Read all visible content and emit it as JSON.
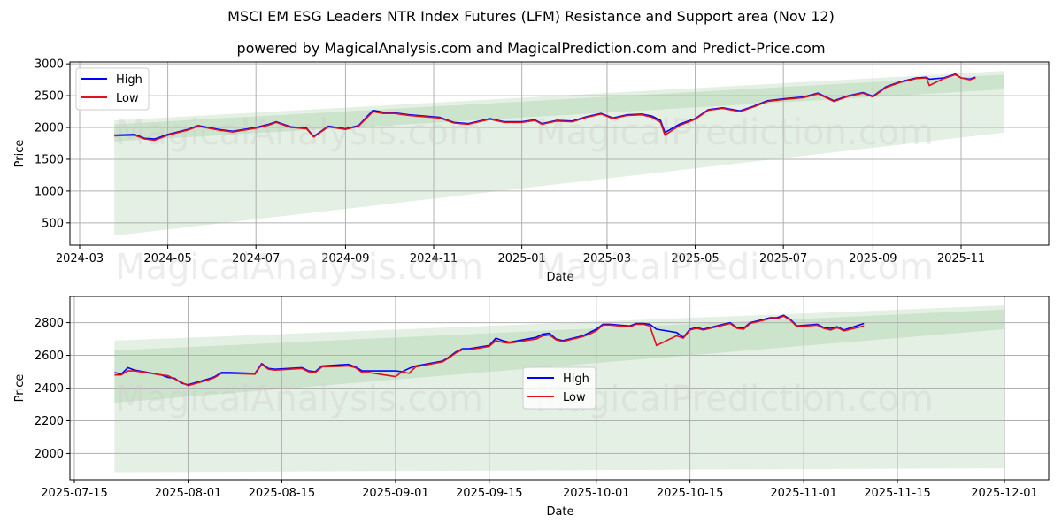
{
  "header": {
    "title": "MSCI EM ESG Leaders NTR Index Futures (LFM) Resistance and Support area (Nov 12)",
    "subtitle": "powered by MagicalAnalysis.com and MagicalPrediction.com and Predict-Price.com"
  },
  "watermarks": [
    "MagicalAnalysis.com",
    "MagicalPrediction.com"
  ],
  "colors": {
    "high": "#0000ff",
    "low": "#e0101e",
    "band": "#2e8b2e",
    "grid": "#b0b0b0"
  },
  "chart_data": [
    {
      "type": "line",
      "title": "",
      "xlabel": "Date",
      "ylabel": "Price",
      "ylim": [
        150,
        3030
      ],
      "yticks": [
        500,
        1000,
        1500,
        2000,
        2500,
        3000
      ],
      "xticks": [
        "2024-03",
        "2024-05",
        "2024-07",
        "2024-09",
        "2024-11",
        "2025-01",
        "2025-03",
        "2025-05",
        "2025-07",
        "2025-09",
        "2025-11"
      ],
      "grid": true,
      "legend": {
        "position": "upper left",
        "entries": [
          "High",
          "Low"
        ]
      },
      "x": [
        "2024-03-25",
        "2024-04-08",
        "2024-04-15",
        "2024-04-22",
        "2024-05-01",
        "2024-05-15",
        "2024-05-22",
        "2024-06-05",
        "2024-06-15",
        "2024-07-01",
        "2024-07-10",
        "2024-07-15",
        "2024-07-25",
        "2024-08-05",
        "2024-08-10",
        "2024-08-20",
        "2024-09-01",
        "2024-09-10",
        "2024-09-20",
        "2024-09-27",
        "2024-10-05",
        "2024-10-15",
        "2024-10-25",
        "2024-11-05",
        "2024-11-15",
        "2024-11-25",
        "2024-12-10",
        "2024-12-20",
        "2025-01-01",
        "2025-01-10",
        "2025-01-15",
        "2025-01-25",
        "2025-02-05",
        "2025-02-15",
        "2025-02-25",
        "2025-03-05",
        "2025-03-15",
        "2025-03-25",
        "2025-04-01",
        "2025-04-07",
        "2025-04-10",
        "2025-04-20",
        "2025-05-01",
        "2025-05-10",
        "2025-05-20",
        "2025-06-01",
        "2025-06-10",
        "2025-06-20",
        "2025-07-01",
        "2025-07-15",
        "2025-07-25",
        "2025-08-05",
        "2025-08-15",
        "2025-08-25",
        "2025-09-01",
        "2025-09-10",
        "2025-09-20",
        "2025-10-01",
        "2025-10-08",
        "2025-10-10",
        "2025-10-20",
        "2025-10-28",
        "2025-11-01",
        "2025-11-07",
        "2025-11-11"
      ],
      "series": [
        {
          "name": "High",
          "values": [
            1880,
            1890,
            1830,
            1820,
            1890,
            1970,
            2030,
            1970,
            1940,
            2000,
            2050,
            2090,
            2010,
            1990,
            1860,
            2020,
            1980,
            2030,
            2270,
            2240,
            2230,
            2200,
            2180,
            2160,
            2080,
            2060,
            2140,
            2090,
            2090,
            2120,
            2060,
            2110,
            2100,
            2170,
            2220,
            2150,
            2200,
            2210,
            2180,
            2110,
            1920,
            2050,
            2140,
            2280,
            2310,
            2260,
            2330,
            2420,
            2450,
            2480,
            2540,
            2420,
            2500,
            2550,
            2490,
            2640,
            2720,
            2780,
            2790,
            2760,
            2780,
            2840,
            2780,
            2760,
            2790
          ]
        },
        {
          "name": "Low",
          "values": [
            1870,
            1880,
            1820,
            1800,
            1880,
            1960,
            2020,
            1960,
            1930,
            1990,
            2040,
            2080,
            2000,
            1980,
            1850,
            2010,
            1970,
            2020,
            2250,
            2220,
            2220,
            2190,
            2170,
            2150,
            2070,
            2050,
            2130,
            2080,
            2080,
            2110,
            2050,
            2100,
            2090,
            2160,
            2210,
            2140,
            2190,
            2200,
            2160,
            2080,
            1880,
            2030,
            2130,
            2270,
            2300,
            2250,
            2320,
            2410,
            2440,
            2470,
            2530,
            2410,
            2490,
            2540,
            2480,
            2630,
            2710,
            2770,
            2780,
            2660,
            2770,
            2830,
            2780,
            2750,
            2780
          ]
        }
      ],
      "bands": [
        {
          "name": "outer",
          "x": [
            "2024-03-25",
            "2025-12-01"
          ],
          "upper": [
            2110,
            2890
          ],
          "lower": [
            300,
            1920
          ]
        },
        {
          "name": "inner",
          "x": [
            "2024-03-25",
            "2025-12-01"
          ],
          "upper": [
            2050,
            2830
          ],
          "lower": [
            1780,
            2600
          ]
        }
      ]
    },
    {
      "type": "line",
      "title": "",
      "xlabel": "Date",
      "ylabel": "Price",
      "ylim": [
        1840,
        2960
      ],
      "yticks": [
        2000,
        2200,
        2400,
        2600,
        2800
      ],
      "xticks": [
        "2025-07-15",
        "2025-08-01",
        "2025-08-15",
        "2025-09-01",
        "2025-09-15",
        "2025-10-01",
        "2025-10-15",
        "2025-11-01",
        "2025-11-15",
        "2025-12-01"
      ],
      "grid": true,
      "legend": {
        "position": "center",
        "entries": [
          "High",
          "Low"
        ]
      },
      "x": [
        "2025-07-21",
        "2025-07-22",
        "2025-07-23",
        "2025-07-24",
        "2025-07-28",
        "2025-07-29",
        "2025-07-30",
        "2025-07-31",
        "2025-08-01",
        "2025-08-04",
        "2025-08-05",
        "2025-08-06",
        "2025-08-07",
        "2025-08-11",
        "2025-08-12",
        "2025-08-13",
        "2025-08-14",
        "2025-08-18",
        "2025-08-19",
        "2025-08-20",
        "2025-08-21",
        "2025-08-25",
        "2025-08-26",
        "2025-08-27",
        "2025-08-28",
        "2025-09-01",
        "2025-09-02",
        "2025-09-03",
        "2025-09-04",
        "2025-09-08",
        "2025-09-09",
        "2025-09-10",
        "2025-09-11",
        "2025-09-12",
        "2025-09-15",
        "2025-09-16",
        "2025-09-17",
        "2025-09-18",
        "2025-09-22",
        "2025-09-23",
        "2025-09-24",
        "2025-09-25",
        "2025-09-26",
        "2025-09-29",
        "2025-09-30",
        "2025-10-01",
        "2025-10-02",
        "2025-10-03",
        "2025-10-06",
        "2025-10-07",
        "2025-10-08",
        "2025-10-09",
        "2025-10-10",
        "2025-10-13",
        "2025-10-14",
        "2025-10-15",
        "2025-10-16",
        "2025-10-17",
        "2025-10-20",
        "2025-10-21",
        "2025-10-22",
        "2025-10-23",
        "2025-10-24",
        "2025-10-27",
        "2025-10-28",
        "2025-10-29",
        "2025-10-30",
        "2025-10-31",
        "2025-11-03",
        "2025-11-04",
        "2025-11-05",
        "2025-11-06",
        "2025-11-07",
        "2025-11-10"
      ],
      "series": [
        {
          "name": "High",
          "values": [
            2495,
            2485,
            2525,
            2510,
            2480,
            2465,
            2460,
            2430,
            2420,
            2455,
            2470,
            2495,
            2495,
            2490,
            2550,
            2520,
            2515,
            2525,
            2505,
            2500,
            2535,
            2545,
            2530,
            2505,
            2505,
            2505,
            2500,
            2520,
            2535,
            2565,
            2590,
            2620,
            2640,
            2640,
            2660,
            2705,
            2690,
            2680,
            2710,
            2730,
            2735,
            2700,
            2690,
            2720,
            2740,
            2760,
            2790,
            2790,
            2780,
            2795,
            2795,
            2790,
            2760,
            2740,
            2710,
            2760,
            2770,
            2760,
            2790,
            2800,
            2770,
            2765,
            2800,
            2830,
            2830,
            2845,
            2820,
            2780,
            2790,
            2770,
            2765,
            2775,
            2755,
            2795
          ]
        },
        {
          "name": "Low",
          "values": [
            2480,
            2480,
            2505,
            2505,
            2480,
            2475,
            2455,
            2435,
            2415,
            2450,
            2465,
            2490,
            2490,
            2485,
            2545,
            2515,
            2510,
            2520,
            2500,
            2495,
            2530,
            2535,
            2525,
            2495,
            2495,
            2470,
            2500,
            2490,
            2530,
            2560,
            2585,
            2615,
            2635,
            2635,
            2655,
            2690,
            2680,
            2675,
            2700,
            2720,
            2725,
            2695,
            2685,
            2715,
            2730,
            2750,
            2785,
            2785,
            2775,
            2790,
            2790,
            2780,
            2660,
            2720,
            2705,
            2755,
            2765,
            2755,
            2785,
            2795,
            2765,
            2760,
            2795,
            2825,
            2825,
            2840,
            2815,
            2775,
            2785,
            2765,
            2755,
            2770,
            2750,
            2780
          ]
        }
      ],
      "bands": [
        {
          "name": "outer",
          "x": [
            "2025-07-21",
            "2025-12-01"
          ],
          "upper": [
            2690,
            2905
          ],
          "lower": [
            1885,
            1910
          ]
        },
        {
          "name": "inner",
          "x": [
            "2025-07-21",
            "2025-12-01"
          ],
          "upper": [
            2630,
            2880
          ],
          "lower": [
            2310,
            2760
          ]
        }
      ]
    }
  ]
}
